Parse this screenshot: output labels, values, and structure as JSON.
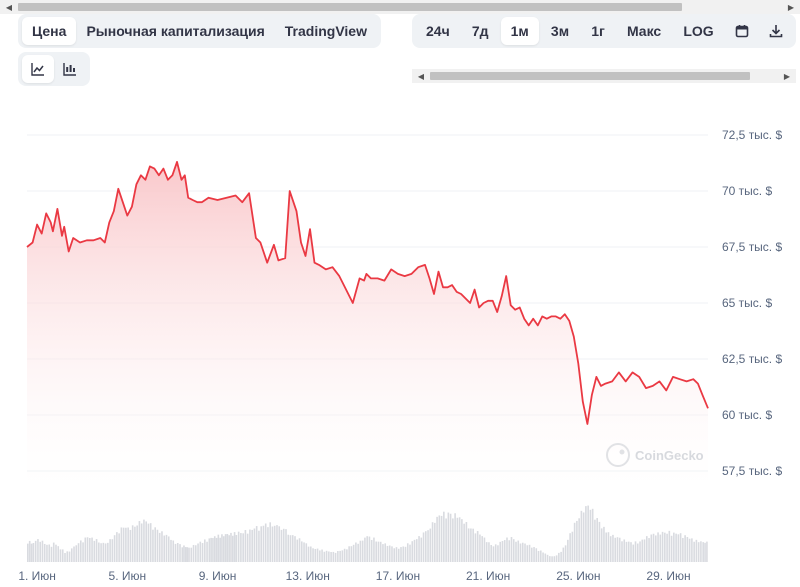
{
  "tabs": {
    "metric": [
      {
        "label": "Цена",
        "active": true
      },
      {
        "label": "Рыночная капитализация",
        "active": false
      },
      {
        "label": "TradingView",
        "active": false
      }
    ],
    "range": [
      {
        "label": "24ч",
        "active": false
      },
      {
        "label": "7д",
        "active": false
      },
      {
        "label": "1м",
        "active": true
      },
      {
        "label": "3м",
        "active": false
      },
      {
        "label": "1г",
        "active": false
      },
      {
        "label": "Макс",
        "active": false
      },
      {
        "label": "LOG",
        "active": false
      }
    ],
    "chart_type": [
      {
        "icon": "line-chart-icon",
        "active": true
      },
      {
        "icon": "candlestick-chart-icon",
        "active": false
      }
    ],
    "calendar_icon": "calendar-icon",
    "download_icon": "download-icon"
  },
  "watermark": "CoinGecko",
  "colors": {
    "line": "#ea3943",
    "fill_top": "#f9c5c8",
    "volume": "#d9dbe0",
    "grid": "#eff2f5"
  },
  "chart_data": {
    "type": "area",
    "title": "",
    "xlabel": "",
    "ylabel": "",
    "ylim": [
      57500,
      73000
    ],
    "yticks": [
      57500,
      60000,
      62500,
      65000,
      67500,
      70000,
      72500
    ],
    "ytick_labels": [
      "57,5 тыс. $",
      "60 тыс. $",
      "62,5 тыс. $",
      "65 тыс. $",
      "67,5 тыс. $",
      "70 тыс. $",
      "72,5 тыс. $"
    ],
    "xticks": [
      "1. Июн",
      "5. Июн",
      "9. Июн",
      "13. Июн",
      "17. Июн",
      "21. Июн",
      "25. Июн",
      "29. Июн"
    ],
    "xtick_days": [
      1,
      5,
      9,
      13,
      17,
      21,
      25,
      29
    ],
    "x_day_range": [
      0.55,
      30.75
    ],
    "grid": true,
    "series": [
      {
        "x": [
          0.55,
          0.8,
          1.0,
          1.2,
          1.4,
          1.6,
          1.7,
          1.9,
          2.1,
          2.2,
          2.4,
          2.6,
          2.9,
          3.2,
          3.5,
          3.8,
          4.0,
          4.2,
          4.4,
          4.6,
          4.8,
          5.0,
          5.2,
          5.4,
          5.6,
          5.8,
          6.0,
          6.2,
          6.4,
          6.6,
          6.8,
          7.0,
          7.2,
          7.4,
          7.55,
          7.7,
          7.9,
          8.1,
          8.3,
          8.6,
          9.0,
          9.4,
          9.8,
          10.1,
          10.4,
          10.7,
          10.9,
          11.2,
          11.5,
          11.7,
          12.0,
          12.2,
          12.5,
          12.7,
          12.9,
          13.1,
          13.3,
          13.5,
          13.8,
          14.1,
          14.4,
          14.7,
          15.0,
          15.3,
          15.5,
          15.6,
          15.8,
          16.1,
          16.4,
          16.7,
          17.0,
          17.3,
          17.6,
          17.9,
          18.2,
          18.4,
          18.6,
          18.8,
          19.0,
          19.2,
          19.4,
          19.6,
          19.8,
          20.0,
          20.2,
          20.4,
          20.6,
          20.8,
          21.0,
          21.2,
          21.4,
          21.6,
          21.8,
          22.0,
          22.2,
          22.4,
          22.6,
          22.8,
          23.0,
          23.2,
          23.4,
          23.6,
          23.8,
          24.0,
          24.2,
          24.4,
          24.6,
          24.8,
          25.0,
          25.2,
          25.4,
          25.6,
          25.8,
          26.0,
          26.2,
          26.5,
          26.8,
          27.1,
          27.4,
          27.7,
          28.0,
          28.3,
          28.6,
          28.9,
          29.2,
          29.5,
          29.8,
          30.1,
          30.3,
          30.5,
          30.75
        ],
        "y": [
          67500,
          67700,
          68500,
          68100,
          69000,
          68600,
          68200,
          69200,
          68000,
          68400,
          67300,
          67900,
          67700,
          67800,
          67800,
          67900,
          67700,
          68600,
          69100,
          70100,
          69500,
          68900,
          69300,
          70300,
          70700,
          70500,
          71100,
          71000,
          70700,
          71000,
          70500,
          70700,
          71300,
          70500,
          70700,
          69700,
          69600,
          69500,
          69500,
          69700,
          69600,
          69700,
          69800,
          69500,
          69900,
          67900,
          67700,
          66800,
          67600,
          66900,
          67000,
          70000,
          69100,
          67700,
          67100,
          68300,
          66800,
          66700,
          66500,
          66600,
          66200,
          65600,
          65000,
          66100,
          66000,
          66300,
          66100,
          66100,
          66000,
          66500,
          66300,
          66200,
          66300,
          66600,
          66700,
          66100,
          65400,
          66400,
          65700,
          65700,
          65800,
          65500,
          65400,
          65200,
          65000,
          65600,
          64800,
          65000,
          65100,
          65100,
          64600,
          65300,
          66200,
          64900,
          64700,
          64800,
          64300,
          64000,
          64300,
          64000,
          64400,
          64300,
          64400,
          64400,
          64300,
          64500,
          64200,
          63500,
          62300,
          60600,
          59600,
          60900,
          61700,
          61300,
          61400,
          61500,
          61900,
          61500,
          61900,
          61700,
          61200,
          61300,
          61500,
          61100,
          61700,
          61600,
          61500,
          61600,
          61400,
          60900,
          60300
        ],
        "volume": [
          0.3,
          0.28,
          0.32,
          0.3,
          0.26,
          0.24,
          0.28,
          0.22,
          0.18,
          0.14,
          0.16,
          0.22,
          0.3,
          0.36,
          0.34,
          0.28,
          0.26,
          0.32,
          0.4,
          0.46,
          0.5,
          0.48,
          0.52,
          0.56,
          0.6,
          0.58,
          0.54,
          0.5,
          0.46,
          0.4,
          0.36,
          0.3,
          0.28,
          0.24,
          0.22,
          0.2,
          0.24,
          0.28,
          0.3,
          0.34,
          0.38,
          0.4,
          0.42,
          0.44,
          0.46,
          0.5,
          0.52,
          0.56,
          0.54,
          0.5,
          0.46,
          0.4,
          0.36,
          0.3,
          0.26,
          0.22,
          0.2,
          0.18,
          0.16,
          0.14,
          0.16,
          0.2,
          0.26,
          0.3,
          0.34,
          0.38,
          0.36,
          0.3,
          0.26,
          0.22,
          0.2,
          0.24,
          0.3,
          0.36,
          0.44,
          0.52,
          0.6,
          0.66,
          0.7,
          0.72,
          0.7,
          0.66,
          0.6,
          0.56,
          0.5,
          0.46,
          0.4,
          0.34,
          0.28,
          0.24,
          0.26,
          0.3,
          0.34,
          0.36,
          0.32,
          0.28,
          0.26,
          0.24,
          0.22,
          0.18,
          0.14,
          0.1,
          0.08,
          0.1,
          0.16,
          0.24,
          0.4,
          0.56,
          0.68,
          0.76,
          0.8,
          0.74,
          0.64,
          0.54,
          0.44,
          0.38,
          0.34,
          0.3,
          0.28,
          0.3,
          0.36,
          0.4,
          0.42,
          0.44,
          0.42,
          0.4,
          0.36,
          0.32,
          0.3,
          0.28,
          0.3
        ]
      }
    ]
  }
}
